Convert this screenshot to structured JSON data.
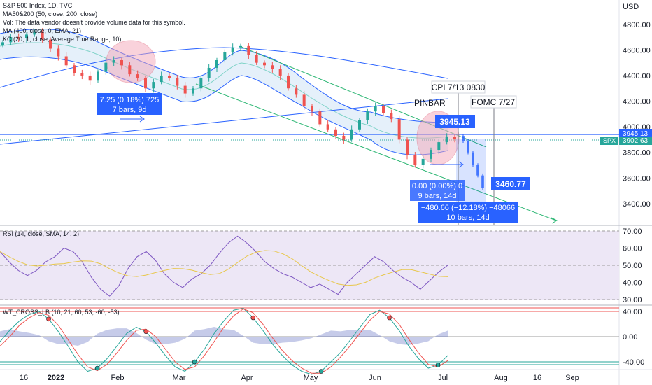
{
  "header": {
    "title": "S&P 500 Index, 1D, TVC",
    "indicators": [
      "MA50&200 (50, close, 200, close)",
      "Vol: The data vendor doesn't provide volume data for this symbol.",
      "MA (400, close, 0, EMA, 21)",
      "KC (20, 1, close, Average True Range, 10)"
    ]
  },
  "price_axis": {
    "currency": "USD",
    "ticks": [
      "4800.00",
      "4600.00",
      "4400.00",
      "4200.00",
      "4000.00",
      "3800.00",
      "3600.00",
      "3400.00"
    ],
    "tick_values": [
      4800,
      4600,
      4400,
      4200,
      4000,
      3800,
      3600,
      3400
    ],
    "ylim": [
      3230,
      4990
    ],
    "price_tag": "3945.13",
    "symbol_tag": "SPX",
    "last_tag": "3902.63"
  },
  "time_axis": {
    "labels": [
      "16",
      "2022",
      "Feb",
      "Mar",
      "Apr",
      "May",
      "Jun",
      "Jul",
      "Aug",
      "16",
      "Sep"
    ]
  },
  "annotations": {
    "measure1": {
      "line1": "7.25 (0.18%) 725",
      "line2": "7 bars, 9d"
    },
    "price_label_high": "3945.13",
    "price_label_low": "3460.77",
    "measure2": {
      "line1": "0.00 (0.00%) 0",
      "line2": "9 bars, 14d"
    },
    "measure3": {
      "line1": "−480.66 (−12.18%) −48066",
      "line2": "10 bars, 14d"
    },
    "note_pinbar": "PINBAR",
    "note_cpi": "CPI 7/13 0830",
    "note_fomc": "FOMC 7/27"
  },
  "rsi_panel": {
    "label": "RSI (14, close, SMA, 14, 2)",
    "ticks": [
      "70.00",
      "60.00",
      "50.00",
      "40.00",
      "30.00"
    ],
    "tick_values": [
      70,
      60,
      50,
      40,
      30
    ],
    "ylim": [
      27,
      72
    ]
  },
  "wt_panel": {
    "label": "WT_CROSS_LB (10, 21, 60, 53, -60, -53)",
    "ticks": [
      "40.00",
      "0.00",
      "-40.00"
    ],
    "tick_values": [
      40,
      0,
      -40
    ],
    "ylim": [
      -70,
      70
    ]
  },
  "colors": {
    "bull": "#26a69a",
    "bear": "#ef5350",
    "blue": "#2962ff",
    "channel_fill": "#cfe3f5",
    "rsi_band": "#ede7f6",
    "rsi_line": "#7e57c2",
    "rsi_sma": "#e8c74a",
    "trend_green": "#2bb673",
    "highlight": "#f4a6b8",
    "annotation_bg": "#2962ff"
  },
  "chart_data": {
    "type": "candlestick",
    "title": "S&P 500 Index, 1D, TVC",
    "ylabel": "USD",
    "ylim": [
      3230,
      4990
    ],
    "closes_approx": [
      4660,
      4700,
      4690,
      4720,
      4740,
      4680,
      4610,
      4550,
      4480,
      4420,
      4400,
      4360,
      4430,
      4500,
      4520,
      4480,
      4410,
      4380,
      4300,
      4350,
      4400,
      4380,
      4320,
      4260,
      4300,
      4380,
      4460,
      4520,
      4580,
      4620,
      4630,
      4560,
      4500,
      4480,
      4450,
      4400,
      4300,
      4250,
      4160,
      4120,
      4020,
      3980,
      3930,
      3900,
      3980,
      4050,
      4120,
      4160,
      4110,
      4060,
      3900,
      3780,
      3700,
      3750,
      3820,
      3880,
      3920,
      3902
    ],
    "key_levels": [
      3945.13,
      3460.77
    ],
    "rsi": {
      "name": "RSI (14, close, SMA, 14, 2)",
      "values": [
        58,
        52,
        47,
        44,
        47,
        52,
        55,
        60,
        58,
        52,
        43,
        36,
        32,
        38,
        48,
        55,
        58,
        53,
        45,
        40,
        37,
        42,
        45,
        50,
        57,
        63,
        67,
        63,
        58,
        52,
        48,
        45,
        43,
        40,
        37,
        39,
        36,
        33,
        40,
        45,
        50,
        55,
        52,
        47,
        43,
        40,
        36,
        41,
        46,
        50
      ]
    },
    "wt_cross": {
      "name": "WT_CROSS_LB (10, 21, 60, 53, -60, -53)",
      "wt1": [
        -8,
        10,
        25,
        35,
        40,
        28,
        8,
        -15,
        -40,
        -55,
        -50,
        -35,
        -15,
        5,
        15,
        8,
        -10,
        -30,
        -48,
        -55,
        -40,
        -20,
        5,
        25,
        42,
        45,
        30,
        10,
        -12,
        -30,
        -45,
        -55,
        -60,
        -55,
        -40,
        -25,
        -5,
        15,
        35,
        42,
        30,
        10,
        -15,
        -35,
        -50,
        -45,
        -30
      ],
      "wt2": [
        -15,
        0,
        18,
        30,
        38,
        34,
        18,
        -5,
        -28,
        -48,
        -54,
        -44,
        -26,
        -6,
        10,
        12,
        0,
        -20,
        -40,
        -52,
        -48,
        -30,
        -8,
        15,
        33,
        44,
        38,
        20,
        -2,
        -22,
        -38,
        -50,
        -58,
        -58,
        -48,
        -32,
        -14,
        6,
        26,
        40,
        36,
        20,
        -4,
        -26,
        -44,
        -48,
        -38
      ]
    }
  }
}
